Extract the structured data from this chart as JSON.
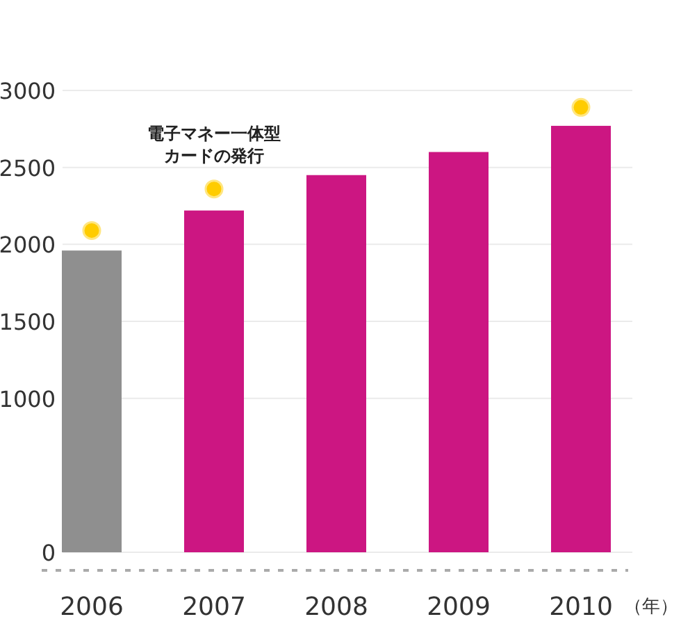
{
  "chart_data": {
    "type": "bar",
    "xlabel": "（年）",
    "categories": [
      "2006",
      "2007",
      "2008",
      "2009",
      "2010"
    ],
    "series": [
      {
        "colors": [
          "#8f8f8f",
          "#cc1682",
          "#cc1682",
          "#cc1682",
          "#cc1682"
        ],
        "values": [
          1960,
          2220,
          2450,
          2600,
          2770
        ]
      },
      {
        "type": "scatter",
        "color": "#ffcc00",
        "marker": "circle",
        "values": [
          2090,
          2360,
          null,
          null,
          2890
        ]
      }
    ],
    "ylim": [
      0,
      3000
    ],
    "yticks": [
      0,
      1000,
      1500,
      2000,
      2500,
      3000
    ],
    "grid": "y",
    "annotations": [
      {
        "text": "電子マネー一体型カードの発行",
        "x": "2007",
        "y": 2360
      }
    ]
  }
}
